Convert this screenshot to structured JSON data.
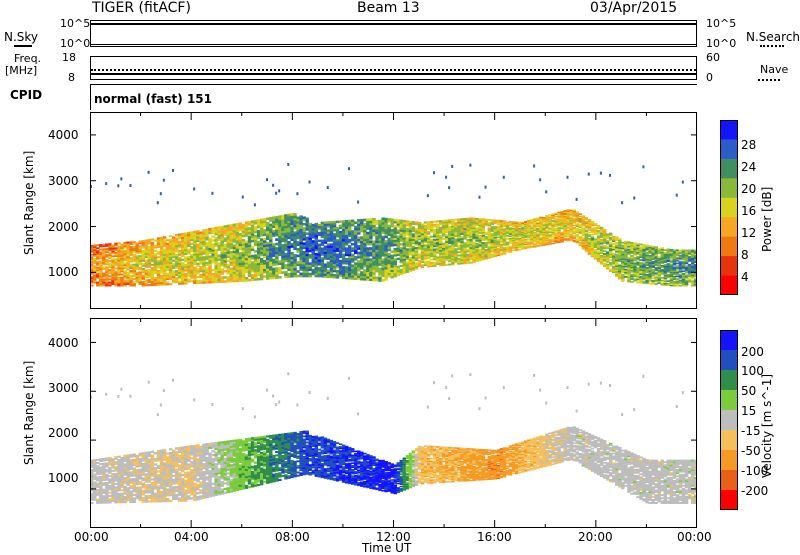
{
  "header": {
    "title": "TIGER (fitACF)",
    "beam": "Beam 13",
    "date": "03/Apr/2015"
  },
  "strips": {
    "nsky_label": "N.Sky",
    "nsearch_label": "N.Search",
    "noise_ticks_left": [
      "10^5",
      "10^0"
    ],
    "noise_ticks_right": [
      "10^5",
      "10^0"
    ],
    "freq_label": "Freq.",
    "freq_unit": "[MHz]",
    "freq_ticks": [
      "18",
      "8"
    ],
    "nave_label": "Nave",
    "nave_ticks": [
      "60",
      "0"
    ],
    "cpid_label": "CPID",
    "cpid_value": "normal (fast) 151"
  },
  "colors": {
    "power_scale": [
      "#1414ff",
      "#2c5cc8",
      "#3f8f63",
      "#8ab83a",
      "#d9d21e",
      "#f5a623",
      "#f07a12",
      "#e6340e",
      "#ff0000"
    ],
    "velocity_scale": [
      "#1414ff",
      "#2050c0",
      "#2f8f4a",
      "#7acc3a",
      "#bdbdbd",
      "#f5c05a",
      "#f59a23",
      "#e8601a",
      "#ff0000"
    ]
  },
  "chart_data": [
    {
      "type": "heatmap",
      "panel": "power",
      "ylabel": "Slant Range [km]",
      "yticks": [
        "4000",
        "3000",
        "2000",
        "1000"
      ],
      "ylim": [
        200,
        4500
      ],
      "colorbar_label": "Power [dB]",
      "colorbar_ticks": [
        "28",
        "24",
        "20",
        "16",
        "12",
        "8",
        "4"
      ],
      "colorbar_range": [
        0,
        32
      ],
      "features": [
        {
          "t": 0.0,
          "low": 700,
          "high": 1600,
          "val": 12
        },
        {
          "t": 2.0,
          "low": 700,
          "high": 1700,
          "val": 16
        },
        {
          "t": 4.0,
          "low": 750,
          "high": 1900,
          "val": 18
        },
        {
          "t": 6.0,
          "low": 800,
          "high": 2100,
          "val": 20
        },
        {
          "t": 8.0,
          "low": 900,
          "high": 2300,
          "val": 26
        },
        {
          "t": 9.0,
          "low": 900,
          "high": 2100,
          "val": 28
        },
        {
          "t": 11.5,
          "low": 800,
          "high": 2200,
          "val": 24
        },
        {
          "t": 13.0,
          "low": 1100,
          "high": 2100,
          "val": 20
        },
        {
          "t": 15.0,
          "low": 1200,
          "high": 2200,
          "val": 20
        },
        {
          "t": 17.0,
          "low": 1500,
          "high": 2100,
          "val": 18
        },
        {
          "t": 19.0,
          "low": 1700,
          "high": 2400,
          "val": 16
        },
        {
          "t": 21.0,
          "low": 800,
          "high": 1700,
          "val": 22
        },
        {
          "t": 23.0,
          "low": 700,
          "high": 1500,
          "val": 24
        }
      ]
    },
    {
      "type": "heatmap",
      "panel": "velocity",
      "ylabel": "Slant Range [km]",
      "yticks": [
        "4000",
        "3000",
        "2000",
        "1000"
      ],
      "ylim": [
        200,
        4500
      ],
      "colorbar_label": "Velocity [m s^-1]",
      "colorbar_ticks": [
        "200",
        "100",
        "50",
        "15",
        "-15",
        "-50",
        "-100",
        "-200"
      ],
      "colorbar_range": [
        -250,
        250
      ],
      "features": [
        {
          "t": 0.0,
          "low": 700,
          "high": 1600,
          "val": 0
        },
        {
          "t": 4.0,
          "low": 750,
          "high": 1900,
          "val": -30
        },
        {
          "t": 8.5,
          "low": 1300,
          "high": 2200,
          "val": 180
        },
        {
          "t": 12.0,
          "low": 900,
          "high": 1500,
          "val": 220
        },
        {
          "t": 13.0,
          "low": 1100,
          "high": 1900,
          "val": -60
        },
        {
          "t": 16.0,
          "low": 1200,
          "high": 1800,
          "val": -120
        },
        {
          "t": 19.0,
          "low": 1600,
          "high": 2300,
          "val": 0
        },
        {
          "t": 22.0,
          "low": 700,
          "high": 1600,
          "val": 0
        }
      ]
    }
  ],
  "xaxis": {
    "label": "Time UT",
    "ticks": [
      "00:00",
      "04:00",
      "08:00",
      "12:00",
      "16:00",
      "20:00",
      "00:00"
    ]
  }
}
